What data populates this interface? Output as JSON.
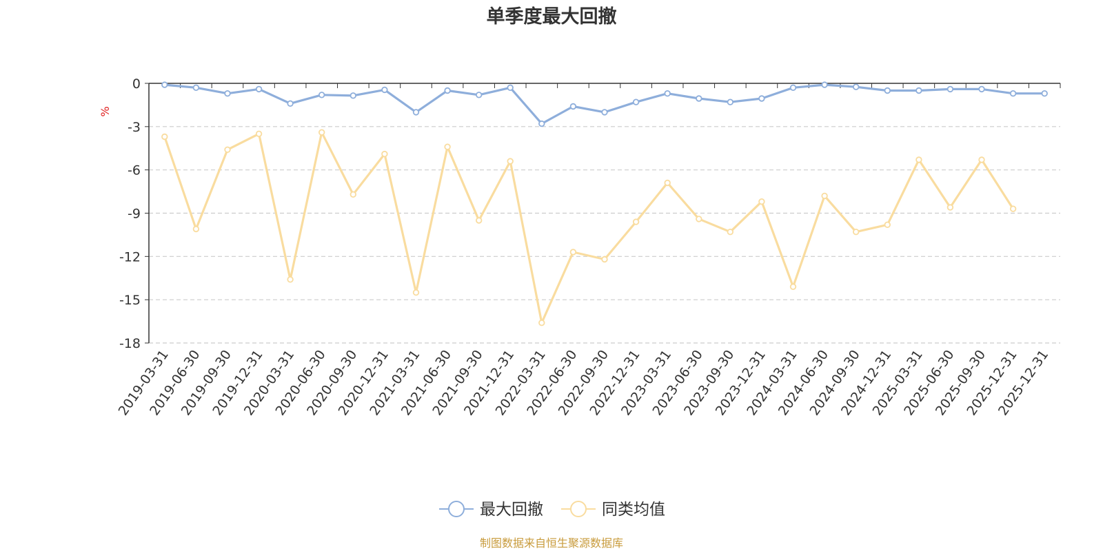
{
  "chart_data": {
    "type": "line",
    "title": "单季度最大回撤",
    "xlabel": "",
    "ylabel": "%",
    "ylim": [
      -18,
      0
    ],
    "yticks": [
      0,
      -3,
      -6,
      -9,
      -12,
      -15,
      -18
    ],
    "grid": true,
    "categories": [
      "2019-03-31",
      "2019-06-30",
      "2019-09-30",
      "2019-12-31",
      "2020-03-31",
      "2020-06-30",
      "2020-09-30",
      "2020-12-31",
      "2021-03-31",
      "2021-06-30",
      "2021-09-30",
      "2021-12-31",
      "2022-03-31",
      "2022-06-30",
      "2022-09-30",
      "2022-12-31",
      "2023-03-31",
      "2023-06-30",
      "2023-09-30",
      "2023-12-31",
      "2024-03-31",
      "2024-06-30",
      "2024-09-30",
      "2024-12-31",
      "2025-03-31",
      "2025-06-30",
      "2025-09-30",
      "2025-12-31",
      "2025-12-31"
    ],
    "series": [
      {
        "name": "最大回撤",
        "color": "#8eaedb",
        "values": [
          -0.1,
          -0.3,
          -0.7,
          -0.4,
          -1.4,
          -0.8,
          -0.85,
          -0.45,
          -2.0,
          -0.5,
          -0.8,
          -0.3,
          -2.8,
          -1.6,
          -2.0,
          -1.3,
          -0.7,
          -1.05,
          -1.3,
          -1.05,
          -0.3,
          -0.1,
          -0.25,
          -0.5,
          -0.5,
          -0.4,
          -0.4,
          -0.7,
          -0.7
        ]
      },
      {
        "name": "同类均值",
        "color": "#f9dc9f",
        "values": [
          -3.7,
          -10.1,
          -4.6,
          -3.5,
          -13.6,
          -3.4,
          -7.7,
          -4.9,
          -14.5,
          -4.4,
          -9.5,
          -5.4,
          -16.6,
          -11.7,
          -12.2,
          -9.6,
          -6.9,
          -9.4,
          -10.3,
          -8.2,
          -14.1,
          -7.8,
          -10.3,
          -9.8,
          -5.3,
          -8.6,
          -5.3,
          -8.7,
          null
        ]
      }
    ],
    "legend_position": "bottom-center",
    "source": "制图数据来自恒生聚源数据库"
  },
  "colors": {
    "title": "#333333",
    "axis": "#333333",
    "grid": "#cccccc",
    "ylabel": "#e01f1f",
    "source": "#c89b3c"
  }
}
